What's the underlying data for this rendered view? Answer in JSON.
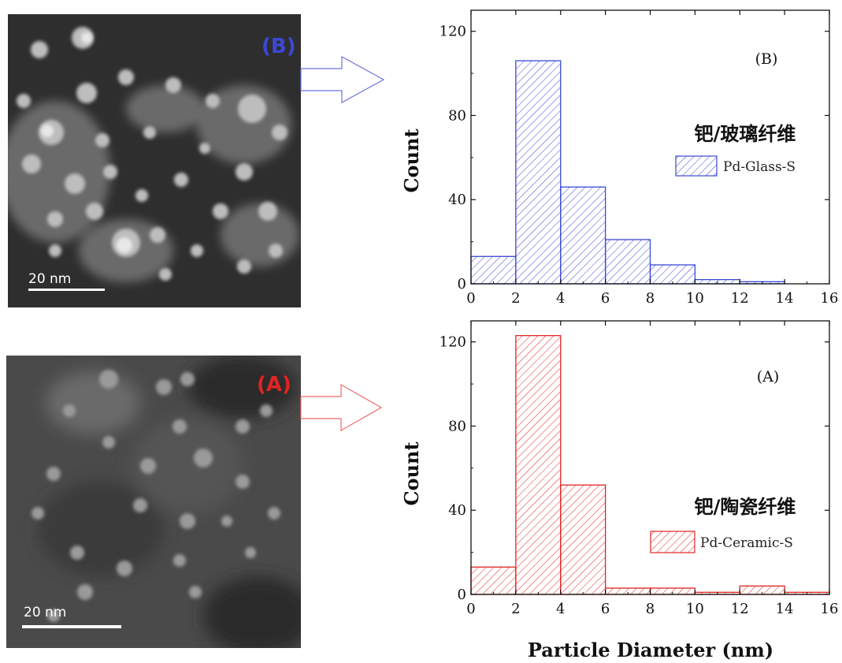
{
  "images": [
    {
      "panel_label": "(B)",
      "scale_bar": "20 nm",
      "accent": "#3b48d6"
    },
    {
      "panel_label": "(A)",
      "scale_bar": "20 nm",
      "accent": "#e02424"
    }
  ],
  "chart_data": [
    {
      "type": "bar",
      "annotation": "(B)",
      "x": [
        0,
        2,
        4,
        6,
        8,
        10,
        12
      ],
      "bin_width": 2,
      "values": [
        13,
        106,
        46,
        21,
        9,
        2,
        1
      ],
      "xlim": [
        0,
        16
      ],
      "ylim": [
        0,
        130
      ],
      "xticks": [
        "0",
        "2",
        "4",
        "6",
        "8",
        "10",
        "12",
        "14",
        "16"
      ],
      "yticks": [
        "0",
        "40",
        "80",
        "120"
      ],
      "ylabel": "Count",
      "xlabel": "",
      "legend_title": "钯/玻璃纤维",
      "series": [
        {
          "name": "Pd-Glass-S",
          "color": "#3b48d6"
        }
      ],
      "legend": "right",
      "grid": false
    },
    {
      "type": "bar",
      "annotation": "(A)",
      "x": [
        0,
        2,
        4,
        6,
        8,
        10,
        12,
        14
      ],
      "bin_width": 2,
      "values": [
        13,
        123,
        52,
        3,
        3,
        1,
        4,
        1
      ],
      "xlim": [
        0,
        16
      ],
      "ylim": [
        0,
        130
      ],
      "xticks": [
        "0",
        "2",
        "4",
        "6",
        "8",
        "10",
        "12",
        "14",
        "16"
      ],
      "yticks": [
        "0",
        "40",
        "80",
        "120"
      ],
      "ylabel": "Count",
      "xlabel": "Particle Diameter (nm)",
      "legend_title": "钯/陶瓷纤维",
      "series": [
        {
          "name": "Pd-Ceramic-S",
          "color": "#e02424"
        }
      ],
      "legend": "right",
      "grid": false
    }
  ]
}
